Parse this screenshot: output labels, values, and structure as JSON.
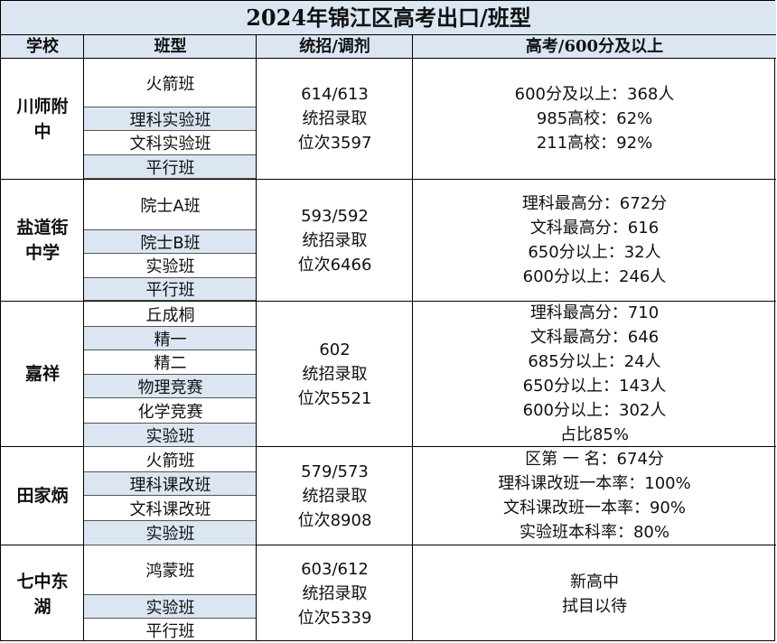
{
  "title": "2024年锦江区高考出口/班型",
  "headers": [
    "学校",
    "班型",
    "统招/调剂",
    "高考/600分及以上"
  ],
  "rows": [
    {
      "school": "川师附中",
      "classes": [
        "火箭班",
        "理科实验班",
        "文科实验班",
        "平行班"
      ],
      "recruit": [
        "614/613",
        "统招录取",
        "位次3597"
      ],
      "results": [
        "600分及以上：368人",
        "985高校：62%",
        "211高校：92%"
      ]
    },
    {
      "school": "盐道街中学",
      "classes": [
        "院士A班",
        "院士B班",
        "实验班",
        "平行班"
      ],
      "recruit": [
        "593/592",
        "统招录取",
        "位次6466"
      ],
      "results": [
        "理科最高分：672分",
        "文科最高分：616",
        "650分以上：32人",
        "600分以上：246人"
      ]
    },
    {
      "school": "嘉祥",
      "classes": [
        "丘成桐",
        "精一",
        "精二",
        "物理竞赛",
        "化学竞赛",
        "实验班"
      ],
      "recruit": [
        "602",
        "统招录取",
        "位次5521"
      ],
      "results": [
        "理科最高分：710",
        "文科最高分：646",
        "685分以上：24人",
        "650分以上：143人",
        "600分以上：302人",
        "占比85%"
      ]
    },
    {
      "school": "田家炳",
      "classes": [
        "火箭班",
        "理科课改班",
        "文科课改班",
        "实验班"
      ],
      "recruit": [
        "579/573",
        "统招录取",
        "位次8908"
      ],
      "results": [
        "区第 一 名：674分",
        "理科课改班一本率：100%",
        "文科课改班一本率：90%",
        "实验班本科率：80%"
      ]
    },
    {
      "school": "七中东湖",
      "classes": [
        "鸿蒙班",
        "实验班",
        "平行班"
      ],
      "recruit": [
        "603/612",
        "统招录取",
        "位次5339"
      ],
      "results": [
        "新高中",
        "拭目以待"
      ]
    }
  ]
}
